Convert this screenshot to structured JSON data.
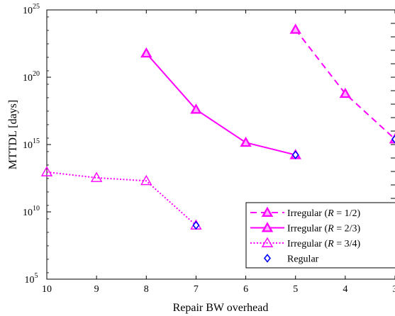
{
  "chart_data": {
    "type": "line",
    "xlabel": "Repair BW overhead",
    "ylabel": "MTTDL [days]",
    "x_reversed": true,
    "xlim": [
      10,
      3
    ],
    "ylim": [
      100000,
      1e+25
    ],
    "y_scale": "log",
    "grid": false,
    "legend_position": "lower-right",
    "x_ticks": [
      10,
      9,
      8,
      7,
      6,
      5,
      4,
      3
    ],
    "y_ticks": [
      {
        "base": "10",
        "exp": "5",
        "value": 100000.0
      },
      {
        "base": "10",
        "exp": "10",
        "value": 10000000000.0
      },
      {
        "base": "10",
        "exp": "15",
        "value": 1000000000000000.0
      },
      {
        "base": "10",
        "exp": "20",
        "value": 1e+20
      },
      {
        "base": "10",
        "exp": "25",
        "value": 1e+25
      }
    ],
    "series": [
      {
        "name": "Irregular (R = 1/2)",
        "label_parts": [
          "Irregular (",
          "R",
          " = 1/2)"
        ],
        "style": "dashed",
        "marker": "triangle-filled",
        "color": "#ff00ff",
        "points": [
          [
            5,
            3.5e+23
          ],
          [
            4,
            6e+18
          ],
          [
            3,
            2500000000000000.0
          ]
        ]
      },
      {
        "name": "Irregular (R = 2/3)",
        "label_parts": [
          "Irregular (",
          "R",
          " = 2/3)"
        ],
        "style": "solid",
        "marker": "triangle-filled",
        "color": "#ff00ff",
        "points": [
          [
            8,
            6e+21
          ],
          [
            7,
            4e+17
          ],
          [
            6,
            1400000000000000.0
          ],
          [
            5,
            170000000000000.0
          ]
        ]
      },
      {
        "name": "Irregular (R = 3/4)",
        "label_parts": [
          "Irregular (",
          "R",
          " = 3/4)"
        ],
        "style": "dotted",
        "marker": "triangle-open",
        "color": "#ff00ff",
        "points": [
          [
            10,
            9000000000000.0
          ],
          [
            9,
            3400000000000.0
          ],
          [
            8,
            2000000000000.0
          ],
          [
            7,
            1000000000.0
          ]
        ]
      },
      {
        "name": "Regular",
        "label_parts": [
          "Regular",
          "",
          ""
        ],
        "style": "none",
        "marker": "diamond-open",
        "color": "#0000ff",
        "points": [
          [
            7,
            1000000000.0
          ],
          [
            5,
            170000000000000.0
          ],
          [
            3,
            2500000000000000.0
          ]
        ]
      }
    ]
  }
}
